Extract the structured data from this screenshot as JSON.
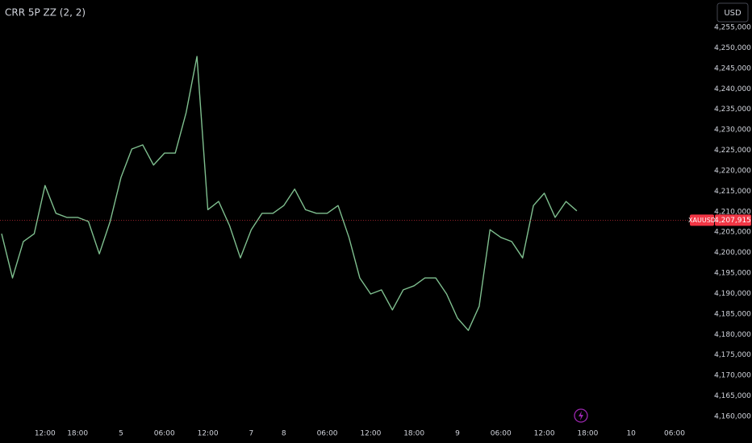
{
  "chart_data": {
    "type": "line",
    "title": "CRR 5P ZZ (2, 2)",
    "currency": "USD",
    "symbol": "XAUUSD",
    "last_price": {
      "value": 4207915,
      "label": "4,207,915"
    },
    "last_price_color": "#f23645",
    "categories": [
      null,
      null,
      null,
      null,
      "12:00",
      null,
      null,
      "18:00",
      null,
      null,
      null,
      "5",
      null,
      null,
      null,
      "06:00",
      null,
      null,
      null,
      "12:00",
      null,
      null,
      null,
      "7",
      null,
      null,
      "8",
      null,
      null,
      null,
      "06:00",
      null,
      null,
      null,
      "12:00",
      null,
      null,
      null,
      "18:00",
      null,
      null,
      null,
      "9",
      null,
      null,
      null,
      "06:00",
      null,
      null,
      null,
      "12:00",
      null,
      null,
      null,
      "18:00",
      null,
      null,
      null,
      "10",
      null,
      null,
      null,
      "06:00"
    ],
    "series": [
      {
        "name": "XAUUSD",
        "color": "#7fbf8f",
        "values": [
          4204600,
          4193800,
          4202700,
          4204600,
          4216400,
          4209600,
          4208600,
          4208600,
          4207600,
          4199700,
          4207600,
          4218400,
          4225300,
          4226300,
          4221400,
          4224300,
          4224300,
          4234200,
          4247900,
          4210500,
          4212500,
          4206600,
          4198700,
          4205600,
          4209600,
          4209600,
          4211500,
          4215500,
          4210500,
          4209600,
          4209600,
          4211500,
          4203700,
          4193800,
          4189900,
          4190900,
          4186000,
          4190900,
          4191900,
          4193800,
          4193800,
          4189900,
          4184000,
          4181000,
          4186900,
          4205600,
          4203700,
          4202700,
          4198700,
          4211500,
          4214500,
          4208600,
          4212500,
          4210200,
          null,
          null,
          null,
          null,
          null,
          null,
          null,
          null,
          null
        ]
      }
    ],
    "ylim": [
      4153500,
      4261700
    ],
    "yticks": [
      {
        "value": 4160000,
        "label": "4,160,000"
      },
      {
        "value": 4165000,
        "label": "4,165,000"
      },
      {
        "value": 4170000,
        "label": "4,170,000"
      },
      {
        "value": 4175000,
        "label": "4,175,000"
      },
      {
        "value": 4180000,
        "label": "4,180,000"
      },
      {
        "value": 4185000,
        "label": "4,185,000"
      },
      {
        "value": 4190000,
        "label": "4,190,000"
      },
      {
        "value": 4195000,
        "label": "4,195,000"
      },
      {
        "value": 4200000,
        "label": "4,200,000"
      },
      {
        "value": 4205000,
        "label": "4,205,000"
      },
      {
        "value": 4210000,
        "label": "4,210,000"
      },
      {
        "value": 4215000,
        "label": "4,215,000"
      },
      {
        "value": 4220000,
        "label": "4,220,000"
      },
      {
        "value": 4225000,
        "label": "4,225,000"
      },
      {
        "value": 4230000,
        "label": "4,230,000"
      },
      {
        "value": 4235000,
        "label": "4,235,000"
      },
      {
        "value": 4240000,
        "label": "4,240,000"
      },
      {
        "value": 4245000,
        "label": "4,245,000"
      },
      {
        "value": 4250000,
        "label": "4,250,000"
      },
      {
        "value": 4255000,
        "label": "4,255,000"
      }
    ],
    "grid": false
  }
}
